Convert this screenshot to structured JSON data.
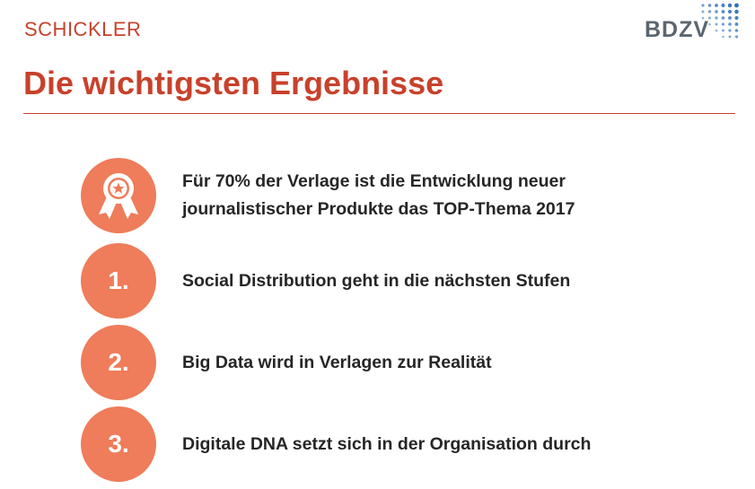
{
  "header": {
    "brand_left": "SCHICKLER",
    "brand_right": "BDZV",
    "title": "Die wichtigsten Ergebnisse"
  },
  "items": [
    {
      "marker": "award-ribbon-icon",
      "line1": "Für 70% der Verlage ist die Entwicklung neuer",
      "line2": "journalistischer Produkte das TOP-Thema 2017"
    },
    {
      "marker": "1.",
      "text": "Social Distribution geht in die nächsten Stufen"
    },
    {
      "marker": "2.",
      "text": "Big Data wird in Verlagen zur Realität"
    },
    {
      "marker": "3.",
      "text": "Digitale DNA setzt sich in der Organisation durch"
    }
  ],
  "colors": {
    "accent": "#c8412b",
    "circle": "#ef7c5a",
    "logo_text": "#5c6670",
    "logo_dots": "#2f6fb5"
  }
}
